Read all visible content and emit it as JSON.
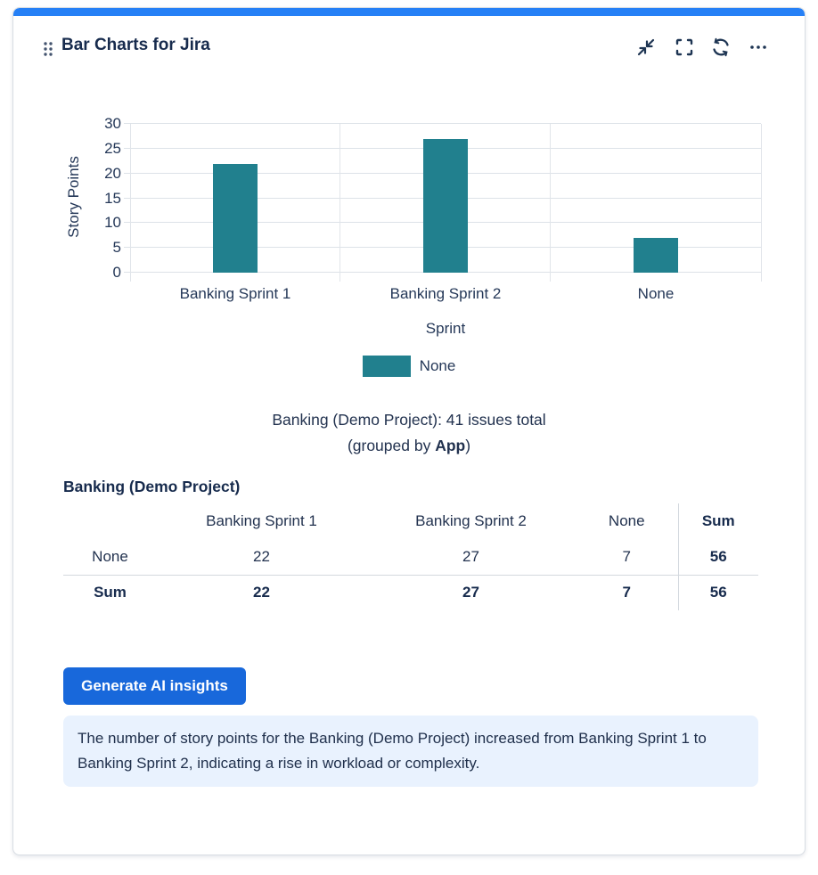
{
  "header": {
    "title": "Bar Charts for Jira",
    "actions": [
      {
        "name": "collapse",
        "icon": "collapse-icon"
      },
      {
        "name": "fullscreen",
        "icon": "fullscreen-icon"
      },
      {
        "name": "refresh",
        "icon": "refresh-icon"
      },
      {
        "name": "more",
        "icon": "ellipsis-icon"
      }
    ]
  },
  "chart_data": {
    "type": "bar",
    "categories": [
      "Banking Sprint 1",
      "Banking Sprint 2",
      "None"
    ],
    "values": [
      22,
      27,
      7
    ],
    "series": [
      {
        "name": "None",
        "values": [
          22,
          27,
          7
        ]
      }
    ],
    "title": "",
    "xlabel": "Sprint",
    "ylabel": "Story Points",
    "ylim": [
      0,
      30
    ],
    "ytick_step": 5,
    "grid": true,
    "legend": [
      "None"
    ],
    "legend_position": "bottom",
    "bar_color": "#21808e"
  },
  "summary": {
    "line1": "Banking (Demo Project): 41 issues total",
    "line2_prefix": "(grouped by ",
    "group_label": "App",
    "line2_suffix": ")"
  },
  "table": {
    "title": "Banking (Demo Project)",
    "columns": [
      "",
      "Banking Sprint 1",
      "Banking Sprint 2",
      "None",
      "Sum"
    ],
    "rows": [
      {
        "label": "None",
        "values": [
          "22",
          "27",
          "7",
          "56"
        ],
        "bold": false
      },
      {
        "label": "Sum",
        "values": [
          "22",
          "27",
          "7",
          "56"
        ],
        "bold": true
      }
    ]
  },
  "insights": {
    "button_label": "Generate AI insights",
    "text": "The number of story points for the Banking (Demo Project) increased from Banking Sprint 1 to Banking Sprint 2, indicating a rise in workload or complexity."
  },
  "colors": {
    "accent_bar": "#2680f6",
    "bar": "#21808e",
    "button": "#1868db",
    "insight_bg": "#e9f2fe",
    "icon": "#1e3553"
  }
}
